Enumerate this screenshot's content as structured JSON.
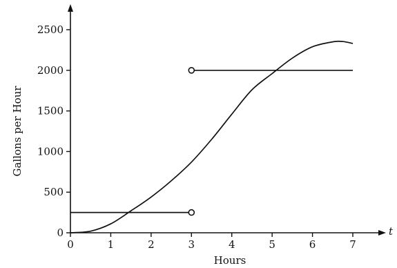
{
  "chart_data": {
    "type": "line",
    "xlabel": "Hours",
    "ylabel": "Gallons per Hour",
    "x_axis_variable": "t",
    "xlim": [
      0,
      7
    ],
    "ylim": [
      0,
      2500
    ],
    "x_ticks": [
      "0",
      "1",
      "2",
      "3",
      "4",
      "5",
      "6",
      "7"
    ],
    "y_ticks": [
      "0",
      "500",
      "1000",
      "1500",
      "2000",
      "2500"
    ],
    "grid": false,
    "legend": "none",
    "series": [
      {
        "kind": "curve",
        "x": [
          0,
          0.5,
          1,
          1.5,
          2,
          2.5,
          3,
          3.5,
          4,
          4.5,
          5,
          5.5,
          6,
          6.5,
          6.75,
          7
        ],
        "y": [
          0,
          20,
          110,
          270,
          440,
          640,
          870,
          1150,
          1460,
          1760,
          1960,
          2150,
          2290,
          2350,
          2355,
          2330
        ]
      },
      {
        "kind": "step",
        "x": [
          0,
          3
        ],
        "y": [
          250,
          250
        ],
        "open_end": "right"
      },
      {
        "kind": "step",
        "x": [
          3,
          7
        ],
        "y": [
          2000,
          2000
        ],
        "open_end": "left"
      }
    ]
  }
}
